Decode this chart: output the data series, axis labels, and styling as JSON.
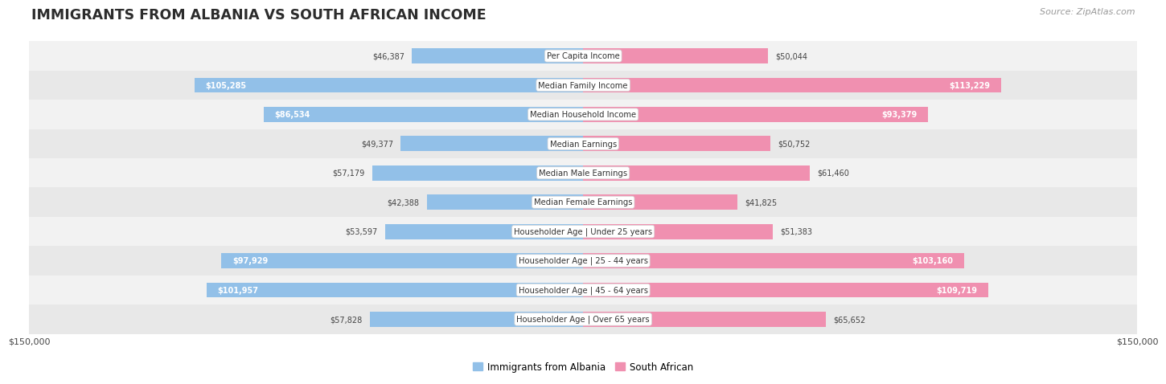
{
  "title": "IMMIGRANTS FROM ALBANIA VS SOUTH AFRICAN INCOME",
  "source": "Source: ZipAtlas.com",
  "categories": [
    "Per Capita Income",
    "Median Family Income",
    "Median Household Income",
    "Median Earnings",
    "Median Male Earnings",
    "Median Female Earnings",
    "Householder Age | Under 25 years",
    "Householder Age | 25 - 44 years",
    "Householder Age | 45 - 64 years",
    "Householder Age | Over 65 years"
  ],
  "albania_values": [
    46387,
    105285,
    86534,
    49377,
    57179,
    42388,
    53597,
    97929,
    101957,
    57828
  ],
  "southafrican_values": [
    50044,
    113229,
    93379,
    50752,
    61460,
    41825,
    51383,
    103160,
    109719,
    65652
  ],
  "max_val": 150000,
  "albania_color": "#92C0E8",
  "southafrican_color": "#F090B0",
  "albania_label": "Immigrants from Albania",
  "southafrican_label": "South African",
  "bar_height": 0.52,
  "row_bg_colors": [
    "#F2F2F2",
    "#E8E8E8"
  ],
  "background_color": "#FFFFFF",
  "value_threshold": 75000,
  "title_color": "#2C2C2C",
  "label_color_dark": "#444444",
  "label_color_white": "#FFFFFF"
}
